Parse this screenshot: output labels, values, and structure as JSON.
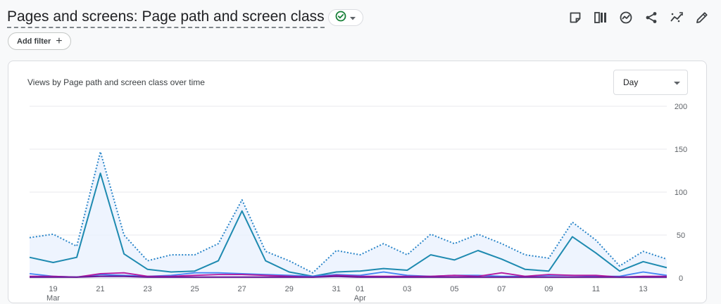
{
  "header": {
    "title": "Pages and screens: Page path and screen class",
    "add_filter_label": "Add filter"
  },
  "toolbar": {
    "icons": [
      "note-icon",
      "compare-icon",
      "insights-icon",
      "share-icon",
      "trend-icon",
      "edit-icon"
    ]
  },
  "card": {
    "title": "Views by Page path and screen class over time",
    "period_select": "Day"
  },
  "colors": {
    "accent": "#1a73e8",
    "series_teal": "#1e8ab0",
    "series_dotted": "#2b86c9",
    "series_purple": "#6a1b9a",
    "series_magenta": "#b5179e",
    "series_blue": "#4285f4",
    "fill": "#e8f0fe",
    "check_green": "#188038"
  },
  "chart_data": {
    "type": "line",
    "x": [
      "2024-03-18",
      "2024-03-19",
      "2024-03-20",
      "2024-03-21",
      "2024-03-22",
      "2024-03-23",
      "2024-03-24",
      "2024-03-25",
      "2024-03-26",
      "2024-03-27",
      "2024-03-28",
      "2024-03-29",
      "2024-03-30",
      "2024-03-31",
      "2024-04-01",
      "2024-04-02",
      "2024-04-03",
      "2024-04-04",
      "2024-04-05",
      "2024-04-06",
      "2024-04-07",
      "2024-04-08",
      "2024-04-09",
      "2024-04-10",
      "2024-04-11",
      "2024-04-12",
      "2024-04-13",
      "2024-04-14"
    ],
    "tick_labels": [
      {
        "index": 1,
        "label": "19",
        "sub": "Mar"
      },
      {
        "index": 3,
        "label": "21"
      },
      {
        "index": 5,
        "label": "23"
      },
      {
        "index": 7,
        "label": "25"
      },
      {
        "index": 9,
        "label": "27"
      },
      {
        "index": 11,
        "label": "29"
      },
      {
        "index": 13,
        "label": "31"
      },
      {
        "index": 14,
        "label": "01",
        "sub": "Apr"
      },
      {
        "index": 16,
        "label": "03"
      },
      {
        "index": 18,
        "label": "05"
      },
      {
        "index": 20,
        "label": "07"
      },
      {
        "index": 22,
        "label": "09"
      },
      {
        "index": 24,
        "label": "11"
      },
      {
        "index": 26,
        "label": "13"
      }
    ],
    "ylim": [
      0,
      200
    ],
    "yticks": [
      0,
      50,
      100,
      150,
      200
    ],
    "grid": true,
    "series": [
      {
        "style": "dotted",
        "values": [
          47,
          51,
          37,
          147,
          50,
          20,
          27,
          27,
          40,
          91,
          31,
          20,
          6,
          32,
          27,
          40,
          27,
          51,
          40,
          51,
          40,
          27,
          23,
          65,
          44,
          14,
          31,
          22
        ]
      },
      {
        "style": "solid",
        "values": [
          24,
          18,
          24,
          122,
          28,
          10,
          7,
          8,
          20,
          78,
          20,
          7,
          2,
          7,
          8,
          11,
          9,
          27,
          21,
          32,
          22,
          10,
          8,
          48,
          29,
          8,
          19,
          12
        ]
      },
      {
        "style": "solid",
        "values": [
          5,
          2,
          1,
          4,
          3,
          2,
          3,
          6,
          6,
          5,
          4,
          3,
          2,
          4,
          3,
          7,
          3,
          2,
          3,
          3,
          2,
          2,
          3,
          3,
          2,
          2,
          7,
          3
        ]
      },
      {
        "style": "solid",
        "values": [
          2,
          2,
          1,
          5,
          6,
          2,
          2,
          3,
          4,
          4,
          3,
          2,
          1,
          3,
          2,
          2,
          2,
          2,
          3,
          2,
          6,
          2,
          4,
          3,
          3,
          1,
          2,
          2
        ]
      },
      {
        "style": "solid",
        "values": [
          1,
          1,
          1,
          2,
          2,
          1,
          1,
          1,
          1,
          1,
          1,
          1,
          1,
          2,
          1,
          1,
          1,
          1,
          1,
          1,
          1,
          1,
          1,
          1,
          1,
          1,
          1,
          1
        ]
      }
    ]
  }
}
